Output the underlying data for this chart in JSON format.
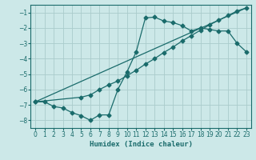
{
  "title": "",
  "xlabel": "Humidex (Indice chaleur)",
  "bg_color": "#cce8e8",
  "grid_color": "#aacccc",
  "line_color": "#1a6b6b",
  "xlim": [
    -0.5,
    23.5
  ],
  "ylim": [
    -8.5,
    -0.5
  ],
  "xticks": [
    0,
    1,
    2,
    3,
    4,
    5,
    6,
    7,
    8,
    9,
    10,
    11,
    12,
    13,
    14,
    15,
    16,
    17,
    18,
    19,
    20,
    21,
    22,
    23
  ],
  "yticks": [
    -1,
    -2,
    -3,
    -4,
    -5,
    -6,
    -7,
    -8
  ],
  "line1_x": [
    0,
    1,
    2,
    3,
    4,
    5,
    6,
    7,
    8,
    9,
    10,
    11,
    12,
    13,
    14,
    15,
    16,
    17,
    18,
    19,
    20,
    21,
    22,
    23
  ],
  "line1_y": [
    -6.8,
    -6.8,
    -7.1,
    -7.2,
    -7.5,
    -7.7,
    -8.0,
    -7.65,
    -7.65,
    -6.0,
    -4.85,
    -3.55,
    -1.35,
    -1.3,
    -1.55,
    -1.65,
    -1.85,
    -2.2,
    -2.0,
    -2.1,
    -2.2,
    -2.2,
    -3.0,
    -3.55
  ],
  "line2_x": [
    0,
    5,
    6,
    7,
    8,
    9,
    10,
    11,
    12,
    13,
    14,
    15,
    16,
    17,
    18,
    19,
    20,
    21,
    22,
    23
  ],
  "line2_y": [
    -6.8,
    -6.5,
    -6.35,
    -6.0,
    -5.7,
    -5.45,
    -5.1,
    -4.75,
    -4.35,
    -4.0,
    -3.6,
    -3.25,
    -2.85,
    -2.5,
    -2.15,
    -1.8,
    -1.5,
    -1.2,
    -0.9,
    -0.7
  ],
  "line3_x": [
    0,
    23
  ],
  "line3_y": [
    -6.8,
    -0.7
  ]
}
